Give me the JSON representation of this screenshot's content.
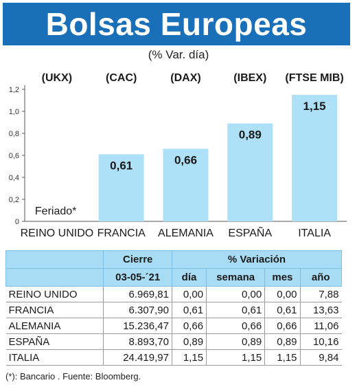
{
  "title": "Bolsas Europeas",
  "subtitle": "(% Var. día)",
  "chart_data": {
    "type": "bar",
    "categories": [
      "REINO UNIDO",
      "FRANCIA",
      "ALEMANIA",
      "ESPAÑA",
      "ITALIA"
    ],
    "indices": [
      "(UKX)",
      "(CAC)",
      "(DAX)",
      "(IBEX)",
      "(FTSE MIB)"
    ],
    "values": [
      null,
      0.61,
      0.66,
      0.89,
      1.15
    ],
    "value_labels": [
      "",
      "0,61",
      "0,66",
      "0,89",
      "1,15"
    ],
    "annotation": "Feriado*",
    "yticks": [
      "0",
      "0,2",
      "0,4",
      "0,6",
      "0,8",
      "1,0",
      "1,2"
    ],
    "ylim": [
      0,
      1.2
    ],
    "bar_color": "#aee0f7",
    "grid": false
  },
  "table": {
    "group_headers": [
      "Cierre",
      "% Variación"
    ],
    "headers": [
      "03-05-´21",
      "día",
      "semana",
      "mes",
      "año"
    ],
    "rows": [
      [
        "REINO UNIDO",
        "6.969,81",
        "0,00",
        "0,00",
        "0,00",
        "7,88"
      ],
      [
        "FRANCIA",
        "6.307,90",
        "0,61",
        "0,61",
        "0,61",
        "13,63"
      ],
      [
        "ALEMANIA",
        "15.236,47",
        "0,66",
        "0,66",
        "0,66",
        "11,06"
      ],
      [
        "ESPAÑA",
        "8.893,70",
        "0,89",
        "0,89",
        "0,89",
        "10,16"
      ],
      [
        "ITALIA",
        "24.419,97",
        "1,15",
        "1,15",
        "1,15",
        "9,84"
      ]
    ]
  },
  "footnote": "(*): Bancario . Fuente: Bloomberg."
}
